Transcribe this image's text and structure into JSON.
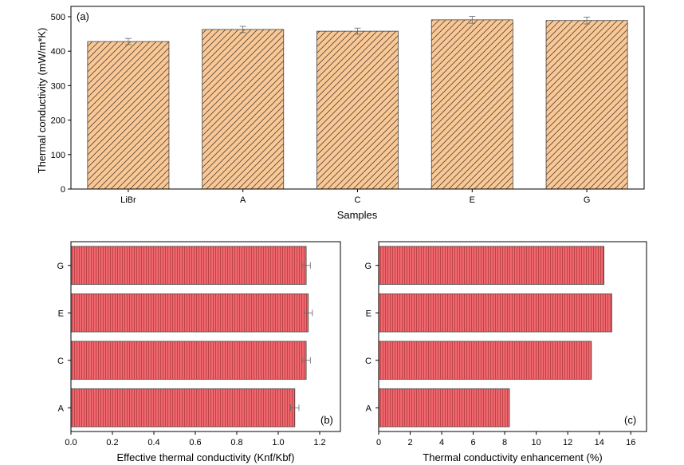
{
  "chart_data": [
    {
      "type": "bar",
      "panel_label": "(a)",
      "categories": [
        "LiBr",
        "A",
        "C",
        "E",
        "G"
      ],
      "values": [
        428,
        463,
        458,
        491,
        489
      ],
      "errors": [
        9,
        9,
        9,
        10,
        10
      ],
      "xlabel": "Samples",
      "ylabel": "Thermal conductivity (mW/m*K)",
      "ylim": [
        0,
        530
      ],
      "yticks": [
        0,
        100,
        200,
        300,
        400,
        500
      ],
      "bar_color": "#F9C896",
      "hatch_color": "#5a4636",
      "edge_color": "#444444",
      "grid": false
    },
    {
      "type": "bar",
      "orientation": "horizontal",
      "panel_label": "(b)",
      "categories": [
        "A",
        "C",
        "E",
        "G"
      ],
      "values": [
        1.08,
        1.135,
        1.145,
        1.135
      ],
      "errors": [
        0.02,
        0.02,
        0.02,
        0.02
      ],
      "xlabel": "Effective thermal conductivity (Knf/Kbf)",
      "ylabel": "",
      "xlim": [
        0,
        1.3
      ],
      "xticks": [
        0.0,
        0.2,
        0.4,
        0.6,
        0.8,
        1.0,
        1.2
      ],
      "xtick_labels": [
        "0.0",
        "0.2",
        "0.4",
        "0.6",
        "0.8",
        "1.0",
        "1.2"
      ],
      "bar_color": "#F0686E",
      "hatch_color": "#9a2a2f",
      "edge_color": "#444444",
      "grid": false
    },
    {
      "type": "bar",
      "orientation": "horizontal",
      "panel_label": "(c)",
      "categories": [
        "A",
        "C",
        "E",
        "G"
      ],
      "values": [
        8.3,
        13.5,
        14.8,
        14.3
      ],
      "xlabel": "Thermal conductivity enhancement (%)",
      "ylabel": "",
      "xlim": [
        0,
        17
      ],
      "xticks": [
        0,
        2,
        4,
        6,
        8,
        10,
        12,
        14,
        16
      ],
      "xtick_labels": [
        "0",
        "2",
        "4",
        "6",
        "8",
        "10",
        "12",
        "14",
        "16"
      ],
      "bar_color": "#F0686E",
      "hatch_color": "#9a2a2f",
      "edge_color": "#444444",
      "grid": false
    }
  ]
}
